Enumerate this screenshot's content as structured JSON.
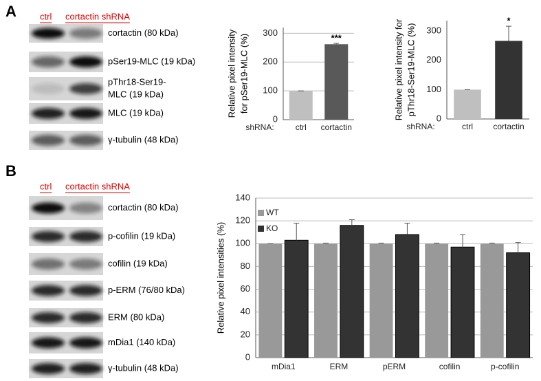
{
  "panels": [
    {
      "label": "A",
      "lanes": [
        "ctrl",
        "cortactin shRNA"
      ],
      "blots": [
        [
          "cortactin (80 kDa)"
        ],
        [
          "pSer19-MLC (19 kDa)"
        ],
        [
          "pThr18-Ser19-",
          "MLC (19 kDa)"
        ],
        [
          "MLC (19 kDa)"
        ],
        [
          "γ-tubulin (48 kDa)"
        ]
      ]
    },
    {
      "label": "B",
      "lanes": [
        "ctrl",
        "cortactin shRNA"
      ],
      "blots": [
        [
          "cortactin (80 kDa)"
        ],
        [
          "p-cofilin (19 kDa)"
        ],
        [
          "cofilin (19 kDa)"
        ],
        [
          "p-ERM (76/80 kDa)"
        ],
        [
          "ERM (80 kDa)"
        ],
        [
          "mDia1 (140 kDa)"
        ],
        [
          "γ-tubulin (48 kDa)"
        ]
      ]
    }
  ],
  "chart_data": [
    {
      "type": "bar",
      "y_label": [
        "Relative pixel intensity",
        "for pSer19-MLC (%)"
      ],
      "x_label": "shRNA:",
      "categories": [
        "ctrl",
        "cortactin"
      ],
      "values": [
        100,
        262
      ],
      "errors": [
        0,
        3
      ],
      "colors": [
        "#bfbfbf",
        "#595959"
      ],
      "annotations": [
        {
          "category": "cortactin",
          "text": "***"
        }
      ],
      "ylim": [
        0,
        320
      ],
      "yticks": [
        0,
        100,
        200,
        300
      ],
      "grid": true
    },
    {
      "type": "bar",
      "y_label": [
        "Relative pixel intensity for",
        "pThr18-Ser19-MLC (%)"
      ],
      "x_label": "shRNA:",
      "categories": [
        "ctrl",
        "cortactin"
      ],
      "values": [
        100,
        266
      ],
      "errors": [
        0,
        50
      ],
      "colors": [
        "#bfbfbf",
        "#333333"
      ],
      "annotations": [
        {
          "category": "cortactin",
          "text": "*"
        }
      ],
      "ylim": [
        0,
        335
      ],
      "yticks": [
        0,
        100,
        200,
        300
      ],
      "grid": false
    },
    {
      "type": "bar",
      "y_label": [
        "Relative pixel intensities (%)"
      ],
      "categories": [
        "mDia1",
        "ERM",
        "pERM",
        "cofilin",
        "p-cofilin"
      ],
      "series": [
        {
          "name": "WT",
          "color": "#999999",
          "values": [
            100,
            100,
            100,
            100,
            100
          ],
          "errors": [
            0,
            0.5,
            0.5,
            0.5,
            0.5
          ]
        },
        {
          "name": "KO",
          "color": "#333333",
          "values": [
            103,
            116,
            108,
            97,
            92
          ],
          "errors": [
            15,
            5,
            10,
            11,
            9
          ]
        }
      ],
      "ylim": [
        0,
        140
      ],
      "yticks": [
        0,
        20,
        40,
        60,
        80,
        100,
        120,
        140
      ],
      "grid": true,
      "legend": "top-left"
    }
  ]
}
